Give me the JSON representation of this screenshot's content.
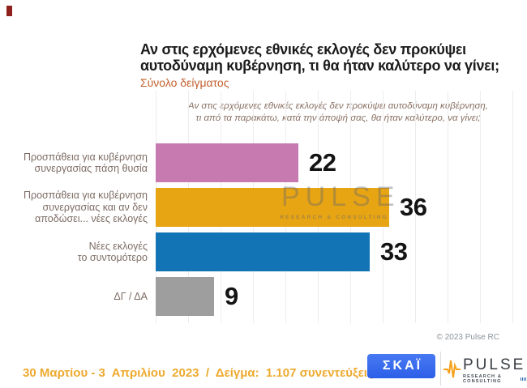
{
  "header": {
    "title": "Αν στις ερχόμενες εθνικές εκλογές δεν προκύψει\nαυτοδύναμη κυβέρνηση, τι θα ήταν καλύτερο να γίνει;",
    "subtitle": "Σύνολο δείγματος"
  },
  "question_note": {
    "text": "Αν στις ερχόμενες εθνικές εκλογές δεν προκύψει αυτοδύναμη κυβέρνηση,\nτι από τα παρακάτω, κατά την άποψή σας, θα ήταν καλύτερο, να γίνει;"
  },
  "chart_data": {
    "type": "bar",
    "orientation": "horizontal",
    "title": "Αν στις ερχόμενες εθνικές εκλογές δεν προκύψει αυτοδύναμη κυβέρνηση, τι θα ήταν καλύτερο να γίνει;",
    "subtitle": "Σύνολο δείγματος",
    "categories": [
      "Προσπάθεια για κυβέρνηση συνεργασίας πάση θυσία",
      "Προσπάθεια για κυβέρνηση συνεργασίας και αν δεν αποδώσει... νέες εκλογές",
      "Νέες εκλογές το συντομότερο",
      "ΔΓ / ΔΑ"
    ],
    "labels_display": [
      "Προσπάθεια για κυβέρνηση\nσυνεργασίας πάση θυσία",
      "Προσπάθεια για κυβέρνηση\nσυνεργασίας και αν δεν\nαποδώσει... νέες εκλογές",
      "Νέες εκλογές\nτο συντομότερο",
      "ΔΓ / ΔΑ"
    ],
    "values": [
      22,
      36,
      33,
      9
    ],
    "value_labels": [
      "22",
      "36",
      "33",
      "9"
    ],
    "colors": [
      "#c77aaf",
      "#e8a513",
      "#1273b5",
      "#9e9e9e"
    ],
    "xlabel": "",
    "ylabel": "",
    "xlim": [
      0,
      55
    ],
    "gridline_step": 5,
    "grid": true,
    "legend": false,
    "value_labels_shown": true
  },
  "watermark": {
    "line1": "PULSE",
    "line2": "RESEARCH & CONSULTING"
  },
  "copyright_text": "© 2023 Pulse RC",
  "footer": {
    "survey_info": "30 Μαρτίου - 3  Απριλίου  2023  /  Δείγμα:  1.107 συνεντεύξεις"
  },
  "logos": {
    "skai_label": "ΣΚΑΪ",
    "pulse_name": "PULSE",
    "pulse_tagline": "RESEARCH & CONSULTING"
  }
}
